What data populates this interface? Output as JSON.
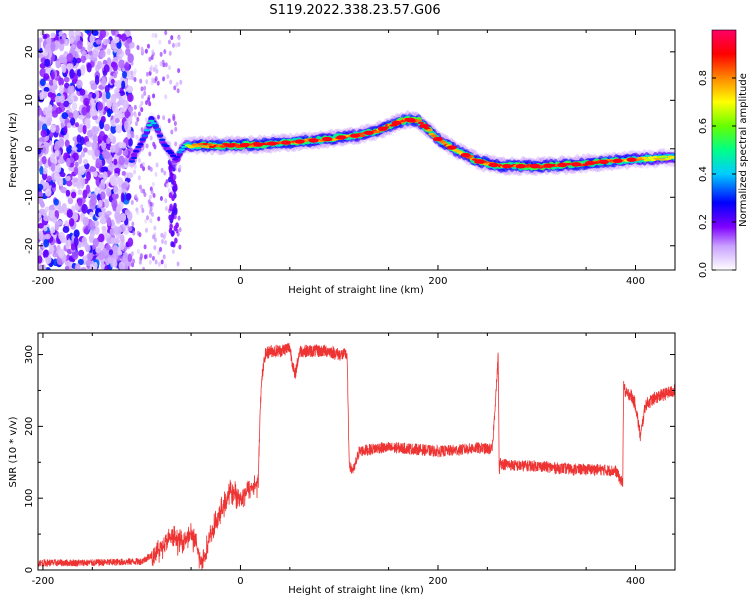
{
  "title": "S119.2022.338.23.57.G06",
  "chart_data": [
    {
      "type": "heatmap",
      "xlabel": "Height of straight line (km)",
      "ylabel": "Frequency (Hz)",
      "xlim": [
        -205,
        440
      ],
      "ylim": [
        -25,
        24.5
      ],
      "xticks": [
        -200,
        0,
        200,
        400
      ],
      "yticks": [
        -20,
        -10,
        0,
        10,
        20
      ],
      "colorbar": {
        "label": "Normalized spectral amplitude",
        "range": [
          0,
          1
        ],
        "ticks": [
          0.0,
          0.2,
          0.4,
          0.6,
          0.8
        ],
        "colors": [
          "#ffffff",
          "#c9a0ff",
          "#7f00ff",
          "#0000ff",
          "#00ccff",
          "#00ff88",
          "#66ff00",
          "#ffff00",
          "#ff8800",
          "#ff0000",
          "#ff0066"
        ]
      },
      "noise_region": {
        "x_range": [
          -205,
          -110
        ],
        "description_level": 0.3
      },
      "ridge": {
        "x": [
          -110,
          -100,
          -95,
          -90,
          -85,
          -80,
          -75,
          -70,
          -65,
          -60,
          -55,
          -50,
          -40,
          -20,
          0,
          20,
          40,
          60,
          80,
          100,
          120,
          140,
          160,
          170,
          180,
          190,
          200,
          220,
          240,
          260,
          270,
          300,
          340,
          380,
          400,
          420,
          440
        ],
        "y": [
          -2.5,
          1.5,
          3.5,
          6.0,
          4.5,
          2.0,
          0.5,
          -1.0,
          -2.5,
          0.0,
          0.8,
          0.6,
          0.7,
          0.7,
          0.7,
          0.9,
          1.2,
          1.5,
          1.8,
          2.3,
          2.8,
          3.8,
          5.5,
          6.0,
          5.8,
          4.0,
          2.0,
          -0.5,
          -2.5,
          -3.5,
          -3.6,
          -3.6,
          -3.2,
          -2.5,
          -2.2,
          -2.0,
          -1.8
        ],
        "amplitude": [
          0.3,
          0.3,
          0.4,
          0.45,
          0.35,
          0.3,
          0.3,
          0.3,
          0.25,
          0.4,
          0.55,
          0.75,
          0.85,
          0.9,
          0.92,
          0.9,
          0.85,
          0.85,
          0.85,
          0.85,
          0.85,
          0.85,
          0.9,
          0.95,
          0.95,
          0.9,
          0.85,
          0.85,
          0.85,
          0.85,
          0.9,
          0.92,
          0.9,
          0.85,
          0.8,
          0.75,
          0.7
        ]
      }
    },
    {
      "type": "line",
      "xlabel": "Height of straight line (km)",
      "ylabel": "SNR (10 * v/v)",
      "xlim": [
        -205,
        440
      ],
      "ylim": [
        0,
        330
      ],
      "xticks": [
        -200,
        0,
        200,
        400
      ],
      "yticks": [
        0,
        100,
        200,
        300
      ],
      "series": [
        {
          "color": "#ee3333",
          "x": [
            -205,
            -150,
            -100,
            -85,
            -70,
            -60,
            -50,
            -45,
            -40,
            -35,
            -30,
            -20,
            -10,
            0,
            10,
            18,
            20,
            22,
            25,
            30,
            40,
            50,
            55,
            60,
            70,
            80,
            90,
            100,
            108,
            110,
            112,
            115,
            120,
            140,
            160,
            180,
            200,
            220,
            240,
            255,
            260,
            261,
            262,
            263,
            265,
            280,
            300,
            320,
            340,
            360,
            380,
            387,
            388,
            390,
            395,
            400,
            405,
            410,
            420,
            440
          ],
          "y": [
            10,
            10,
            12,
            25,
            45,
            40,
            50,
            35,
            10,
            25,
            50,
            80,
            110,
            100,
            115,
            120,
            230,
            270,
            300,
            305,
            305,
            310,
            270,
            305,
            305,
            305,
            305,
            300,
            300,
            150,
            140,
            140,
            165,
            170,
            170,
            168,
            165,
            167,
            170,
            168,
            275,
            300,
            130,
            150,
            148,
            145,
            145,
            142,
            140,
            140,
            138,
            120,
            260,
            245,
            245,
            230,
            185,
            230,
            240,
            250
          ]
        }
      ]
    }
  ]
}
